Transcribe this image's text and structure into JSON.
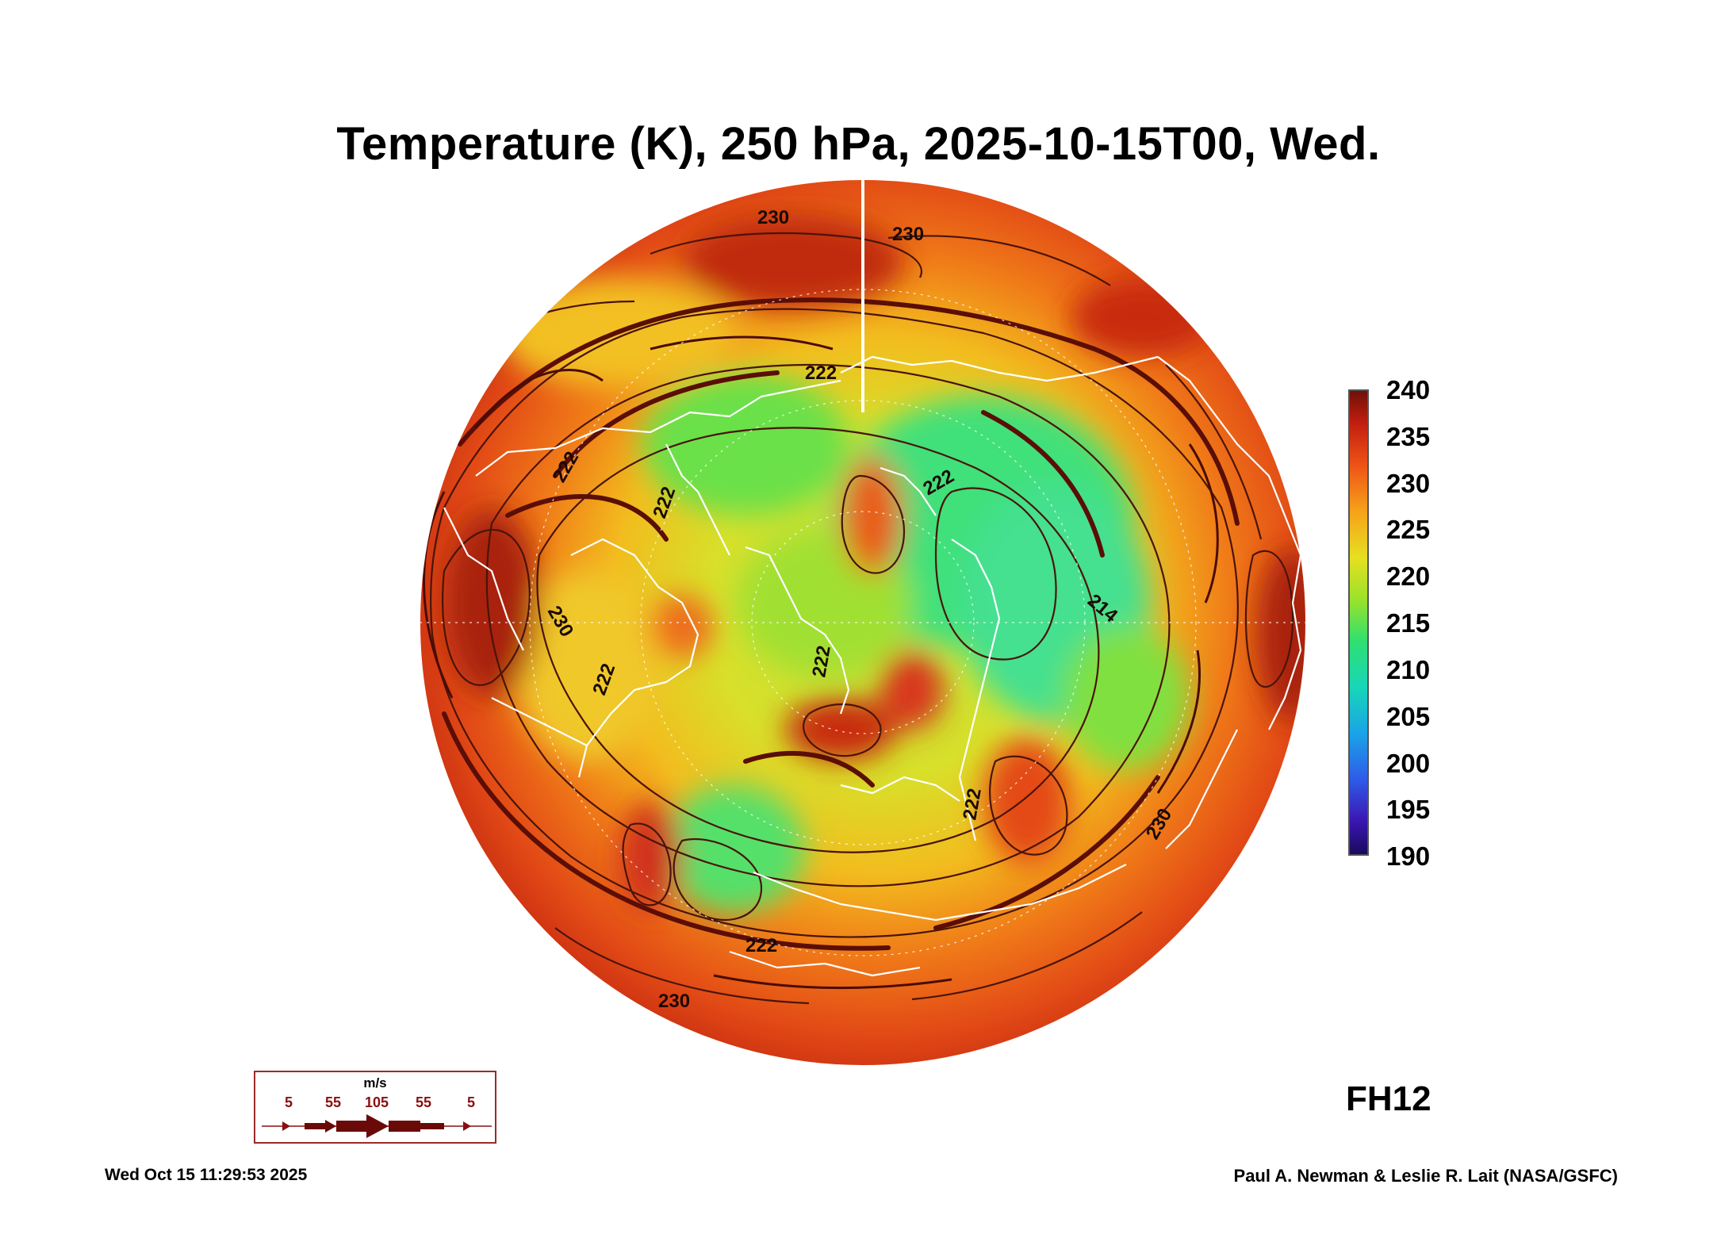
{
  "title": "Temperature (K), 250 hPa, 2025-10-15T00, Wed.",
  "forecast_hour": "FH12",
  "timestamp": "Wed Oct 15 11:29:53 2025",
  "credit": "Paul A. Newman & Leslie R. Lait (NASA/GSFC)",
  "colorbar": {
    "labels": [
      "240",
      "235",
      "230",
      "225",
      "220",
      "215",
      "210",
      "205",
      "200",
      "195",
      "190"
    ],
    "range": [
      190,
      240
    ],
    "colors": [
      "#1a0a5e",
      "#3a16b0",
      "#2f5ae8",
      "#1aa3e8",
      "#18d6b8",
      "#2fe070",
      "#9be22a",
      "#e6e020",
      "#f6a21a",
      "#ee5316",
      "#c21e10",
      "#701008"
    ]
  },
  "wind_legend": {
    "unit": "m/s",
    "speeds": [
      "5",
      "55",
      "105",
      "55",
      "5"
    ]
  },
  "contour_labels": [
    "230",
    "230",
    "222",
    "222",
    "222",
    "222",
    "222",
    "222",
    "214",
    "230",
    "230",
    "222",
    "230",
    "222"
  ],
  "map": {
    "projection": "north-polar-stereographic",
    "warm_color": "#e0401a",
    "cool_color": "#3fe07a",
    "coast_color": "#ffffff",
    "contour_color": "#5a1a0a"
  }
}
